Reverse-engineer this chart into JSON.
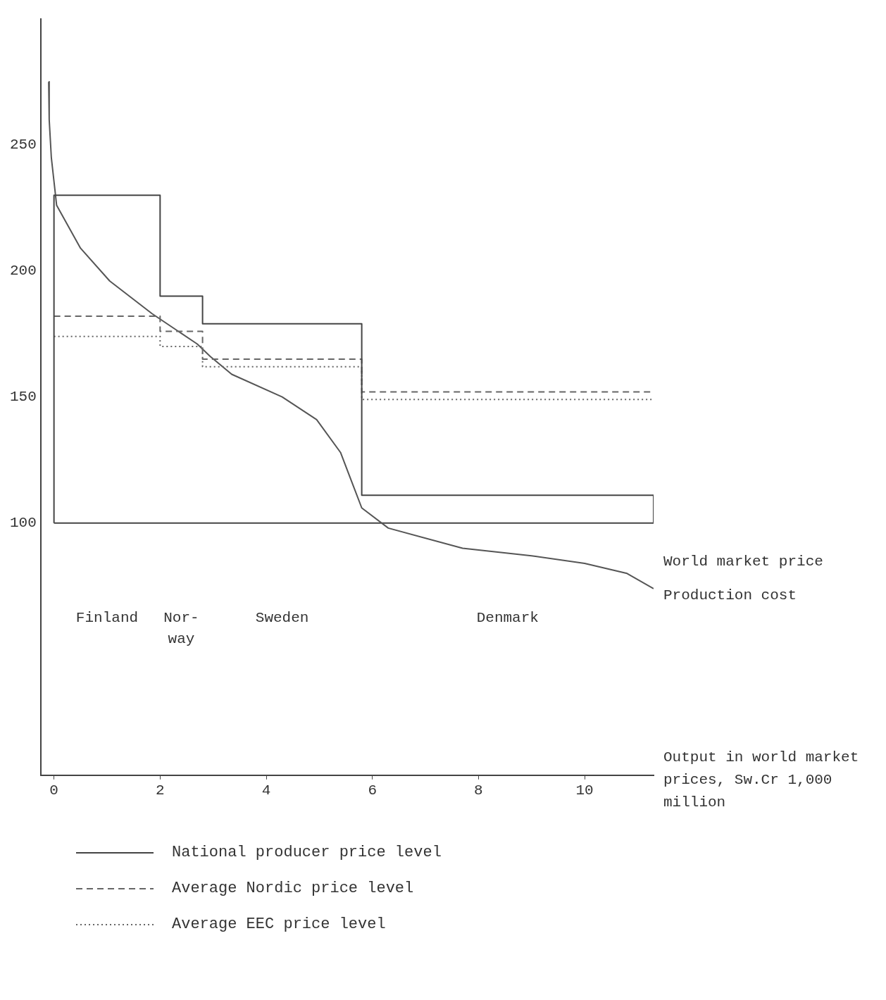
{
  "chart_data": {
    "type": "step",
    "xlabel": "Output in world market prices, Sw.Cr 1,000 million",
    "xlim": [
      -0.25,
      11.3
    ],
    "xticks": [
      0,
      2,
      4,
      6,
      8,
      10
    ],
    "ylim": [
      0,
      300
    ],
    "yticks": [
      100,
      150,
      200,
      250
    ],
    "grid": false,
    "legend": "bottom",
    "series": [
      {
        "name": "National producer price level",
        "type": "step",
        "color": "#444444",
        "line_style": "solid",
        "x": [
          0,
          0,
          2,
          2.8,
          5.8,
          11.3,
          11.3
        ],
        "values": [
          100,
          230,
          190,
          179,
          111,
          111,
          100
        ]
      },
      {
        "name": "Average Nordic price level",
        "type": "step",
        "color": "#666666",
        "line_style": "dashed",
        "x": [
          0,
          2,
          2.8,
          5.8,
          11.3
        ],
        "values": [
          182,
          176,
          165,
          152,
          152
        ]
      },
      {
        "name": "Average EEC price level",
        "type": "step",
        "color": "#666666",
        "line_style": "dotted",
        "x": [
          0,
          2,
          2.8,
          5.8,
          11.3
        ],
        "values": [
          174,
          170,
          162,
          149,
          149
        ]
      },
      {
        "name": "Production cost",
        "type": "line",
        "color": "#555555",
        "line_style": "solid",
        "x": [
          -0.1,
          -0.09,
          -0.05,
          0.05,
          0.5,
          1.05,
          1.85,
          2.7,
          2.95,
          3.35,
          4.3,
          4.95,
          5.4,
          5.6,
          5.8,
          6.3,
          7.7,
          9,
          10,
          10.8,
          11.3
        ],
        "values": [
          275,
          260,
          245,
          226,
          209,
          196,
          183,
          171,
          166,
          159,
          150,
          141,
          128,
          117,
          106,
          98,
          90,
          87,
          84,
          80,
          74
        ]
      }
    ],
    "ref_lines": [
      {
        "axis": "y",
        "value": 100,
        "label": "World market price",
        "color": "#444444"
      }
    ],
    "annotations": [
      "Finland",
      "Nor-\nway",
      "Sweden",
      "Denmark"
    ]
  }
}
